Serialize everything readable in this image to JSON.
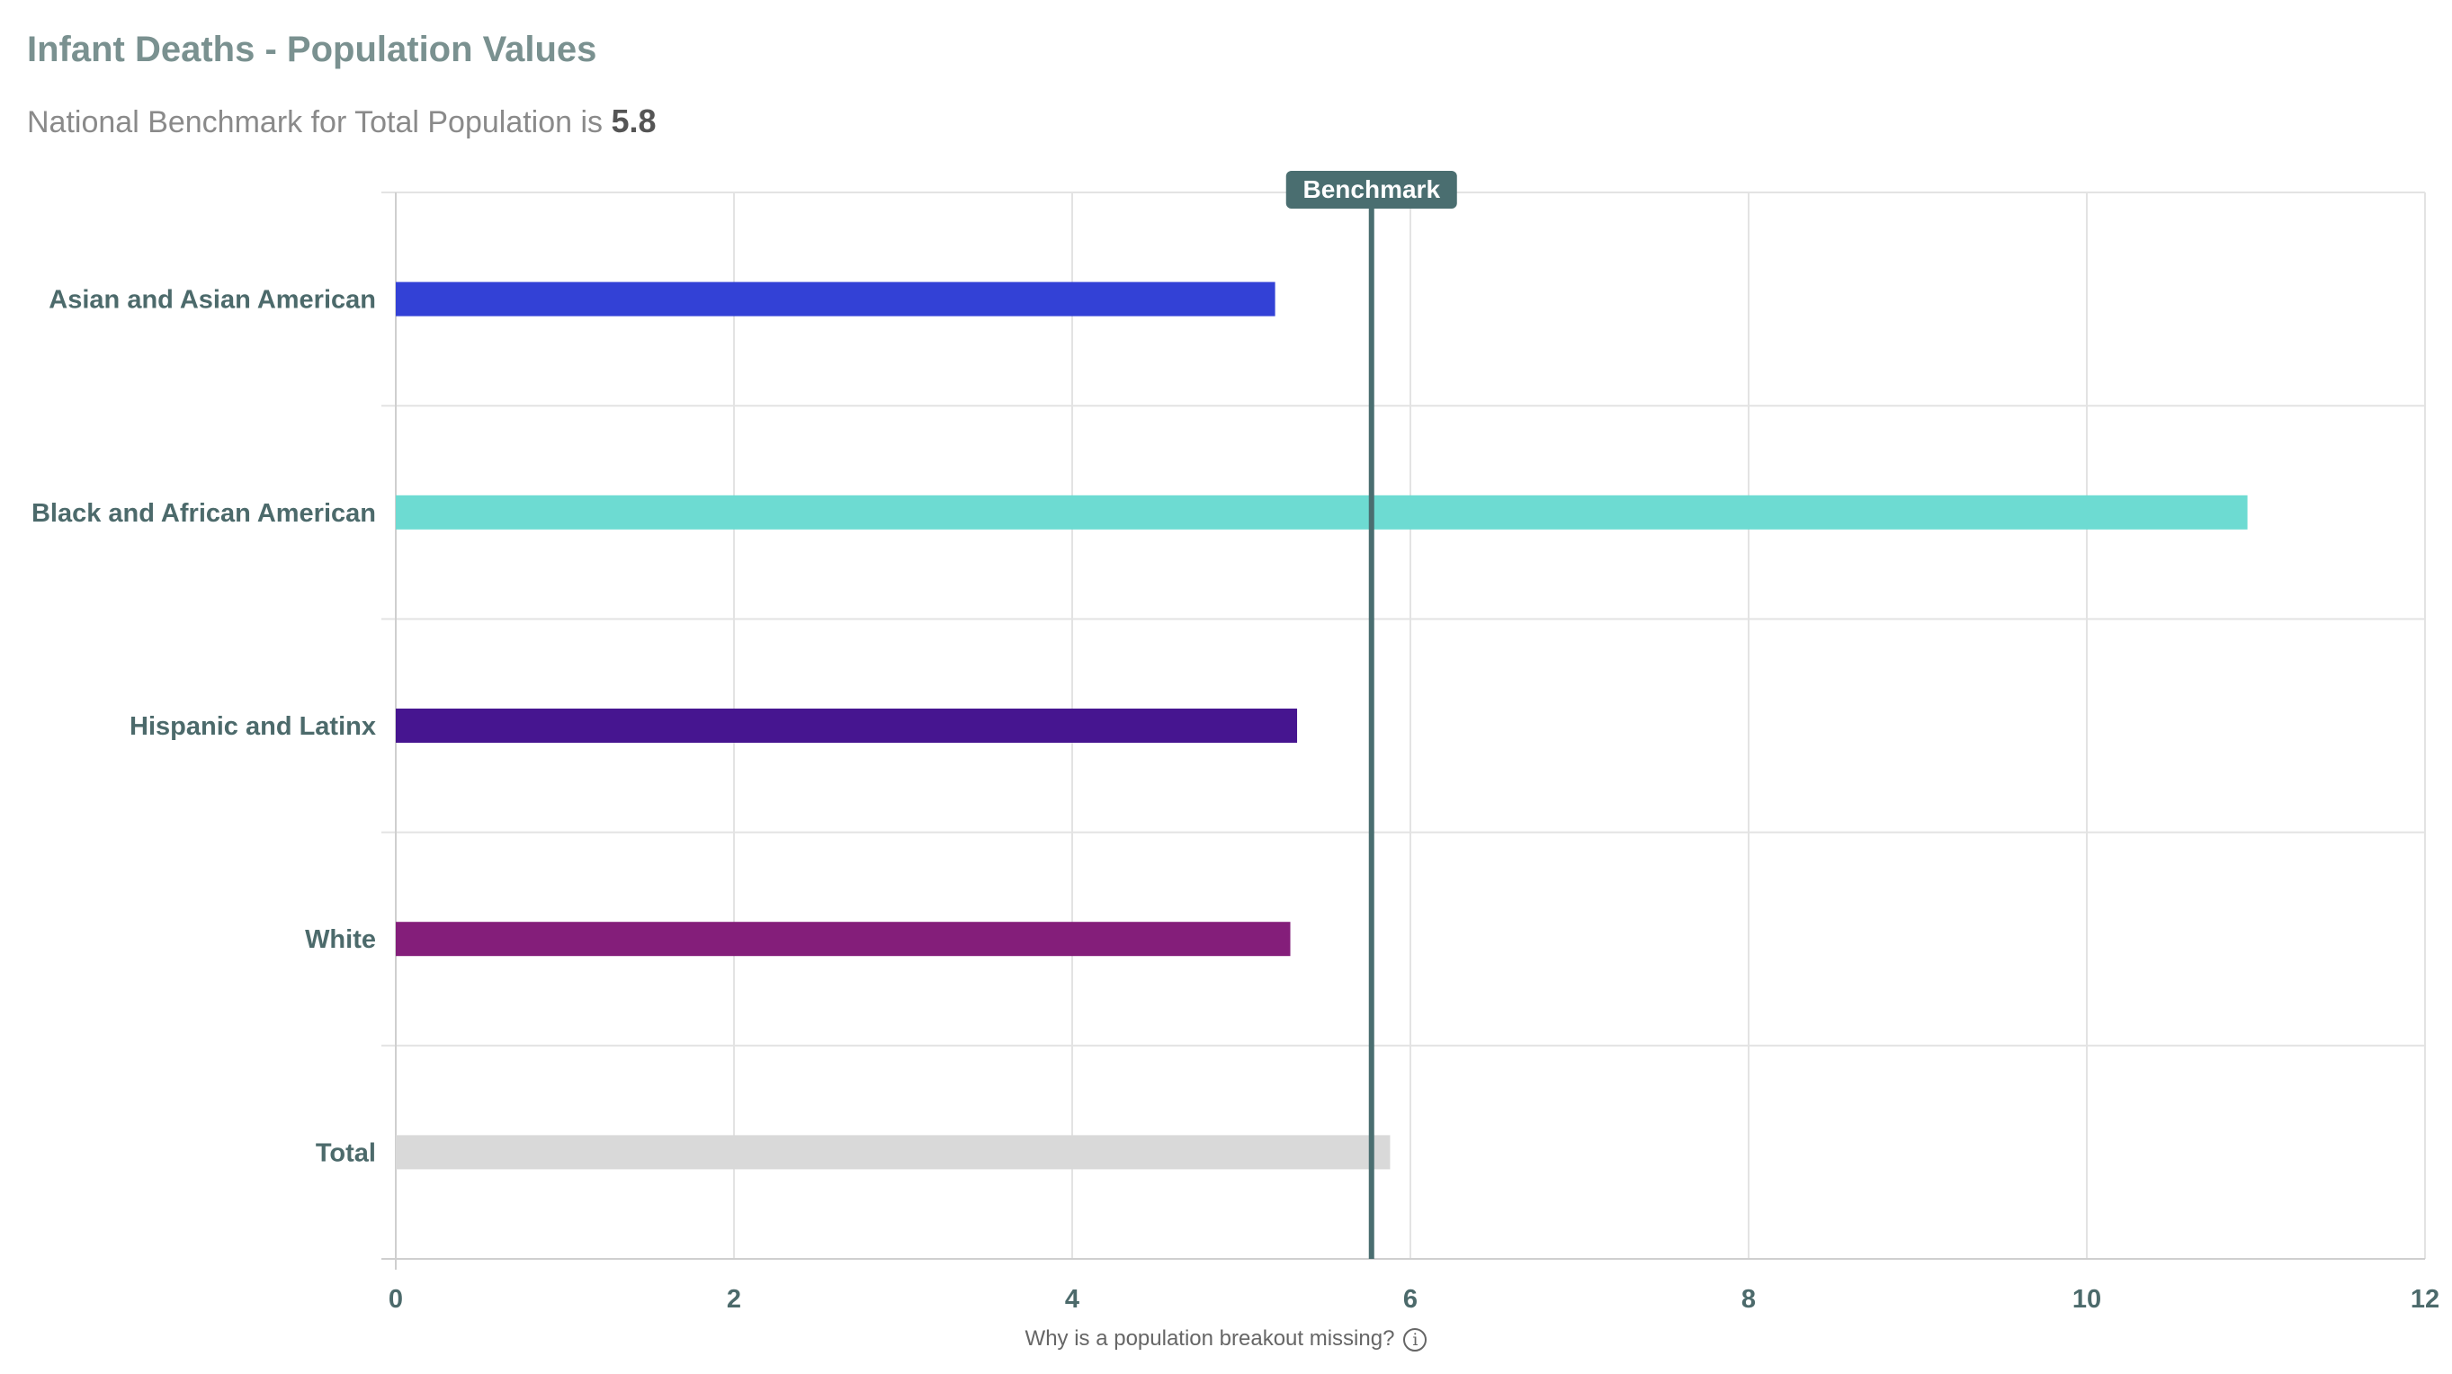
{
  "header": {
    "title": "Infant Deaths - Population Values",
    "subtitle_prefix": "National Benchmark for Total Population is",
    "benchmark_value": "5.8"
  },
  "footer": {
    "note": "Why is a population breakout missing?",
    "info_icon": "info-icon"
  },
  "chart_data": {
    "type": "bar",
    "orientation": "horizontal",
    "categories": [
      "Asian and Asian American",
      "Black and African American",
      "Hispanic and Latinx",
      "White",
      "Total"
    ],
    "values": [
      5.2,
      10.95,
      5.33,
      5.29,
      5.88
    ],
    "colors": [
      "#3341d6",
      "#6ddbd2",
      "#461590",
      "#841e7a",
      "#d9d9d9"
    ],
    "xlim": [
      0,
      12
    ],
    "xticks": [
      0,
      2,
      4,
      6,
      8,
      10,
      12
    ],
    "grid": true,
    "benchmark": {
      "label": "Benchmark",
      "value": 5.77,
      "color": "#4a6e70"
    }
  }
}
